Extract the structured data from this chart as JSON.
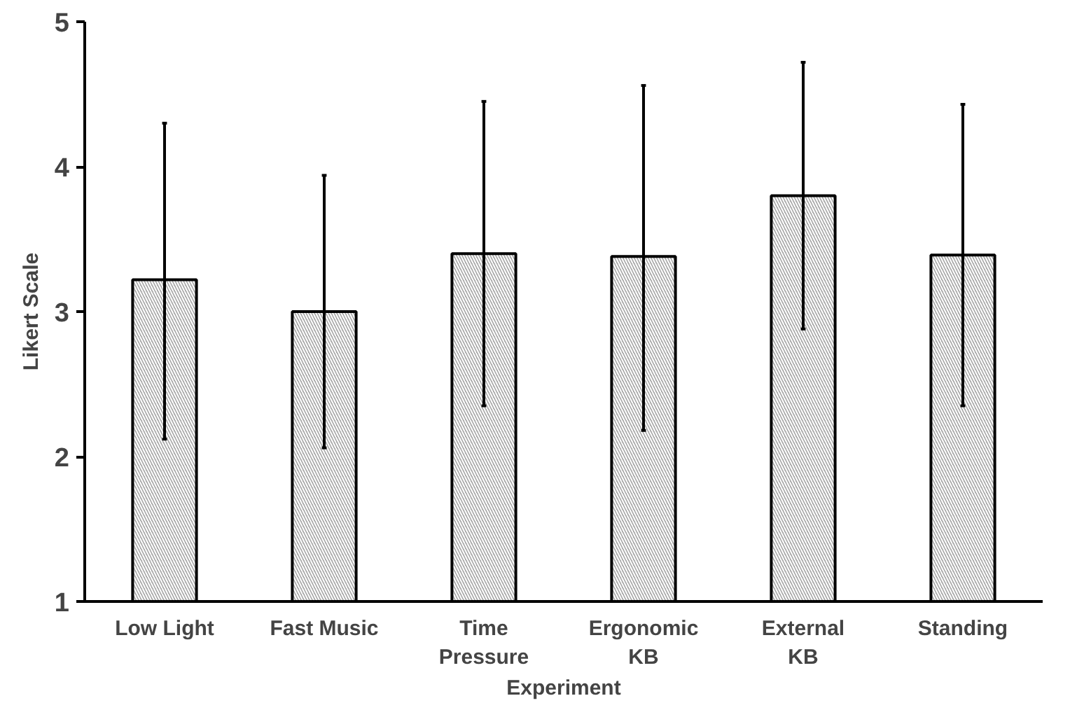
{
  "chart_data": {
    "type": "bar",
    "xlabel": "Experiment",
    "ylabel": "Likert Scale",
    "categories": [
      "Low Light",
      "Fast Music",
      "Time Pressure",
      "Ergonomic KB",
      "External KB",
      "Standing"
    ],
    "values": [
      3.22,
      3.0,
      3.4,
      3.38,
      3.8,
      3.39
    ],
    "errors": [
      [
        2.12,
        4.3
      ],
      [
        2.06,
        3.94
      ],
      [
        2.35,
        4.45
      ],
      [
        2.18,
        4.56
      ],
      [
        2.88,
        4.72
      ],
      [
        2.35,
        4.43
      ]
    ],
    "color": "#a6a6a6",
    "ylim": [
      1,
      5
    ],
    "yticks": [
      1,
      2,
      3,
      4,
      5
    ],
    "grid": false
  }
}
